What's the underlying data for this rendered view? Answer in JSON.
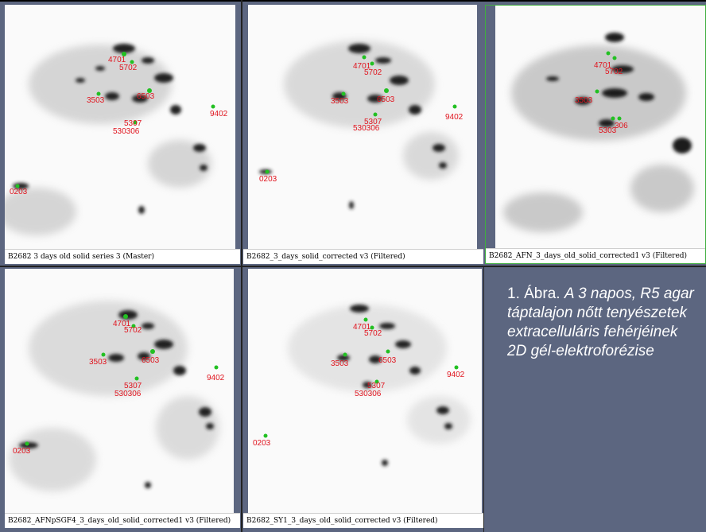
{
  "panels": [
    {
      "caption": "B2682 3 days old solid series 3 (Master)"
    },
    {
      "caption": "B2682_3_days_solid_corrected v3 (Filtered)"
    },
    {
      "caption": "B2682_AFN_3_days_old_solid_corrected1 v3 (Filtered)"
    },
    {
      "caption": "B2682_AFNpSGF4_3_days_old_solid_corrected1 v3 (Filtered)"
    },
    {
      "caption": "B2682_SY1_3_days_old_solid_corrected v3 (Filtered)"
    }
  ],
  "spot_labels": {
    "s4701": "4701",
    "s5702": "5702",
    "s6503": "6503",
    "s3503": "3503",
    "s9402": "9402",
    "s5307": "5307",
    "s5306": "5306",
    "s0203": "0203",
    "s530306": "530306",
    "s5303": "5303",
    "s306": "306"
  },
  "figure_caption": {
    "number": "1. Ábra.",
    "text": "A 3 napos, R5 agar táptalajon nőtt tenyészetek extracelluláris fehérjéinek 2D gél-elektroforézise"
  },
  "colors": {
    "background": "#5c6680",
    "spot_marker": "#22c022",
    "label": "#e0141e",
    "highlight_border": "#3fae3f"
  }
}
